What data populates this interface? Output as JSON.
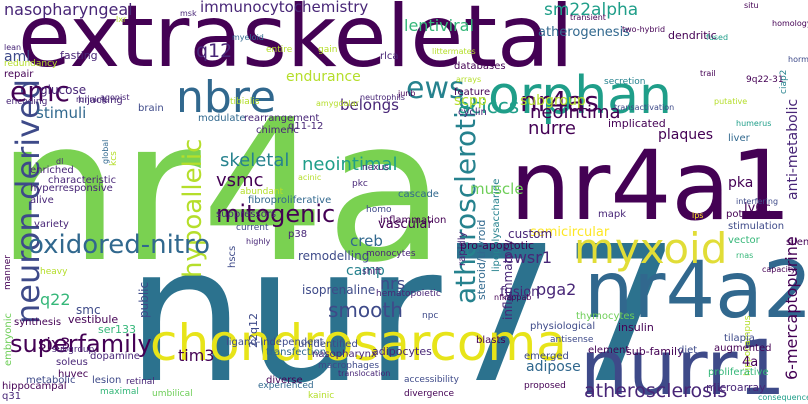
{
  "palette": {
    "dark_purple": "#440154",
    "purple": "#482677",
    "indigo": "#3e4a89",
    "blue": "#31688e",
    "teal": "#26828e",
    "green_teal": "#1f9e89",
    "green": "#35b779",
    "light_green": "#6ece58",
    "lime": "#b5de2b",
    "yellow": "#fde725"
  },
  "words": [
    "nr4a",
    "nur77",
    "extraskeletal",
    "nr4a1",
    "nr4a2",
    "nurr1",
    "chondrosarcoma",
    "orphan",
    "myxoid",
    "nbre",
    "neuron-derived",
    "oxidored-nitro",
    "nr4as",
    "superfamily",
    "atherosclerotic",
    "emc",
    "ews",
    "mitogenic",
    "hypoallelic",
    "neointima",
    "nurre",
    "immunocytochemistry",
    "nasopharyngeal",
    "skeletal",
    "neointimal",
    "atherosclerosis",
    "smooth",
    "lentiviral",
    "sm22alpha",
    "atherogenesis",
    "q12",
    "aml",
    "stimuli",
    "endurance",
    "belongs",
    "aciccs",
    "vsmc",
    "scpp",
    "subgroup",
    "muscle",
    "creb",
    "semicircular",
    "camp",
    "nrs",
    "q22",
    "six3",
    "tim3",
    "smc",
    "pga2",
    "ewsr1",
    "fusion",
    "adipose",
    "6-mercaptopurine",
    "anti-metabolic",
    "plaques",
    "pka",
    "ly6c",
    "glucose",
    "vascular",
    "remodelling",
    "isoprenaline",
    "custom",
    "rapidly",
    "pro-apoptotic",
    "ssp",
    "4a",
    "caco-2",
    "dendritic",
    "9q22-31",
    "lipopolysaccharide",
    "hippocampus",
    "steroid/thyroid",
    "adipocytes",
    "inflammation",
    "brain",
    "inflammatory",
    "modulate",
    "rearrangement",
    "fibroproliferative",
    "suppressors",
    "embryonic",
    "sub-family",
    "diet",
    "insulin",
    "vestibule",
    "ser133",
    "synthesis",
    "huvec",
    "soleus",
    "lesion",
    "dopamine",
    "metabolic",
    "maximal",
    "q31",
    "hippocampal",
    "diverse",
    "umbilical",
    "divergence",
    "emerged",
    "microarray",
    "proliferative",
    "tilapia",
    "thymocytes",
    "physiological",
    "element",
    "antisense",
    "blasts",
    "22q12",
    "public",
    "augmented",
    "consequences",
    "transfection",
    "ligand-independent",
    "hscs",
    "unidentified",
    "nasopharynx",
    "macrophages",
    "experienced",
    "accessibility",
    "proposed",
    "kainic",
    "translocation",
    "nfkappab",
    "npc",
    "stimulation",
    "vector",
    "potent",
    "interfering",
    "lps",
    "mapk",
    "liver",
    "humerus",
    "implicated",
    "transactivation",
    "cyclin",
    "feature",
    "arrays",
    "junb",
    "neutrophils",
    "amygdalar",
    "q11-12",
    "chimeric",
    "tibialis",
    "hijacking",
    "repair",
    "redundancy",
    "encoding",
    "agonist",
    "fasting",
    "entire",
    "gain",
    "ciap2",
    "myeloid",
    "lean",
    "msk",
    "lxr",
    "rlca",
    "littermates",
    "databases",
    "two-hybrid",
    "transient",
    "secretion",
    "trail",
    "manner",
    "kcs",
    "fused",
    "global",
    "situ",
    "homology",
    "hormone",
    "silenced",
    "rnas",
    "capacity",
    "putative",
    "alive",
    "enriched",
    "characteristic",
    "hyperresponsive",
    "variety",
    "heavy",
    "dl",
    "intrinsic",
    "comprising",
    "running",
    "abundant",
    "current",
    "highly",
    "p38",
    "acinic",
    "pkc",
    "nexus",
    "cascade",
    "homo",
    "monocytes",
    "shift",
    "hematopoietic",
    "retinal",
    "subgroup"
  ]
}
